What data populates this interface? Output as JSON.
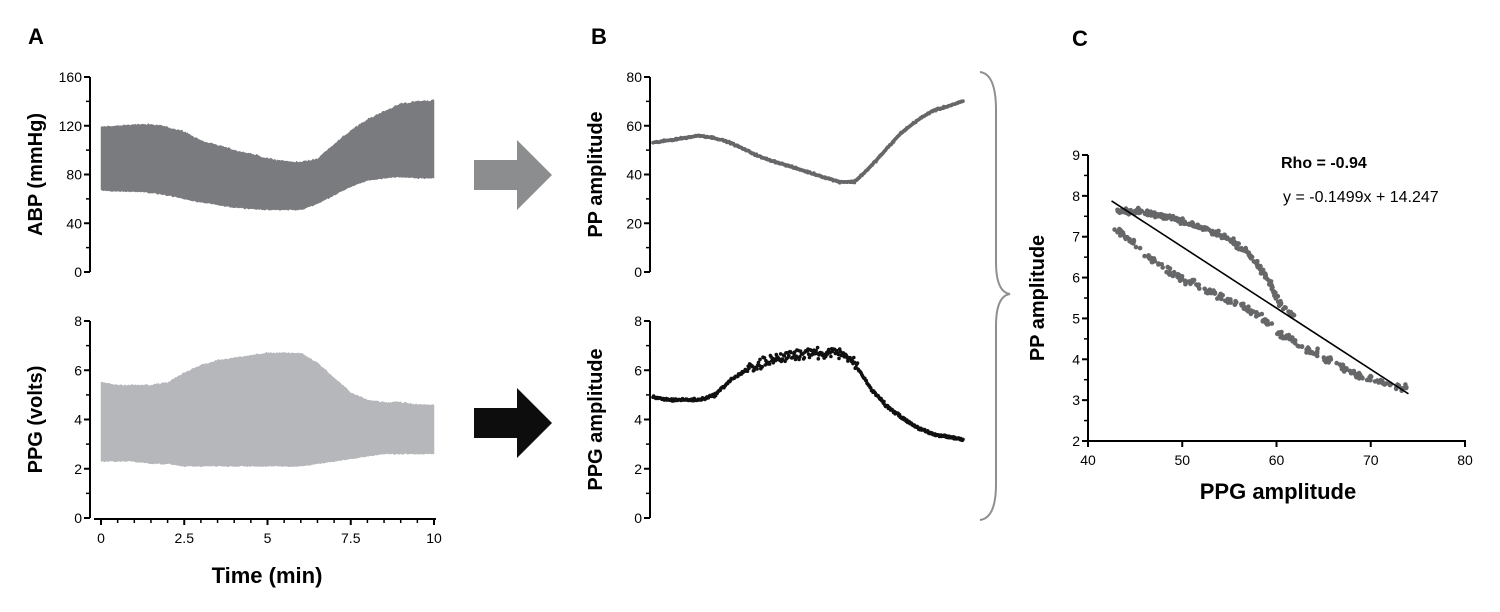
{
  "panels": {
    "a": "A",
    "b": "B",
    "c": "C"
  },
  "colors": {
    "abp": "#7a7b7e",
    "ppg": "#b6b7ba",
    "pp_points": "#666769",
    "ppg_points": "#111111",
    "arrow_top": "#8c8d8f",
    "arrow_bottom": "#0d0d0d",
    "brace": "#8f8f8f",
    "axis": "#000000"
  },
  "chart_data": [
    {
      "id": "a-abp",
      "type": "area",
      "ylabel": "ABP (mmHg)",
      "ylim": [
        0,
        160
      ],
      "yticks": [
        0,
        40,
        80,
        120,
        160
      ],
      "xlim": [
        0,
        10
      ],
      "x": [
        0,
        0.5,
        1,
        1.5,
        2,
        2.5,
        3,
        3.5,
        4,
        4.5,
        5,
        5.5,
        6,
        6.5,
        7,
        7.5,
        8,
        8.5,
        9,
        9.5,
        10
      ],
      "upper": [
        119,
        120,
        121,
        121,
        119,
        115,
        108,
        104,
        100,
        97,
        93,
        91,
        90,
        93,
        105,
        116,
        125,
        132,
        138,
        140,
        141
      ],
      "lower": [
        67,
        66,
        66,
        65,
        63,
        60,
        57,
        55,
        53,
        52,
        51,
        51,
        51,
        56,
        63,
        70,
        75,
        77,
        78,
        77,
        77
      ]
    },
    {
      "id": "a-ppg",
      "type": "area",
      "ylabel": "PPG (volts)",
      "ylim": [
        0,
        8
      ],
      "yticks": [
        0,
        2,
        4,
        6,
        8
      ],
      "xlim": [
        0,
        10
      ],
      "xticks": [
        0,
        2.5,
        5,
        7.5,
        10
      ],
      "xticklabels": [
        "0",
        "2.5",
        "5",
        "7.5",
        "10"
      ],
      "xlabel": "Time (min)",
      "x": [
        0,
        0.5,
        1,
        1.5,
        2,
        2.5,
        3,
        3.5,
        4,
        4.5,
        5,
        5.5,
        6,
        6.5,
        7,
        7.5,
        8,
        8.5,
        9,
        9.5,
        10
      ],
      "upper": [
        5.5,
        5.4,
        5.4,
        5.4,
        5.5,
        5.9,
        6.2,
        6.4,
        6.5,
        6.6,
        6.7,
        6.7,
        6.7,
        6.3,
        5.7,
        5.1,
        4.8,
        4.7,
        4.7,
        4.6,
        4.6
      ],
      "lower": [
        2.3,
        2.3,
        2.3,
        2.2,
        2.2,
        2.1,
        2.1,
        2.1,
        2.1,
        2.1,
        2.1,
        2.1,
        2.1,
        2.2,
        2.3,
        2.4,
        2.5,
        2.6,
        2.6,
        2.6,
        2.6
      ]
    },
    {
      "id": "b-pp",
      "type": "scatter",
      "ylabel": "PP amplitude",
      "ylim": [
        0,
        80
      ],
      "yticks": [
        0,
        20,
        40,
        60,
        80
      ],
      "xlim": [
        0,
        10
      ],
      "x": [
        0,
        0.5,
        1,
        1.5,
        2,
        2.5,
        3,
        3.5,
        4,
        4.5,
        5,
        5.5,
        6,
        6.5,
        7,
        7.5,
        8,
        8.5,
        9,
        9.5,
        10
      ],
      "y": [
        53,
        54,
        55,
        56,
        55,
        53,
        50,
        47,
        45,
        43,
        41,
        39,
        37,
        37,
        43,
        50,
        57,
        62,
        66,
        68,
        70
      ]
    },
    {
      "id": "b-ppg",
      "type": "scatter",
      "ylabel": "PPG amplitude",
      "ylim": [
        0,
        8
      ],
      "yticks": [
        0,
        2,
        4,
        6,
        8
      ],
      "xlim": [
        0,
        10
      ],
      "x": [
        0,
        0.5,
        1,
        1.5,
        2,
        2.5,
        3,
        3.5,
        4,
        4.5,
        5,
        5.5,
        6,
        6.5,
        7,
        7.5,
        8,
        8.5,
        9,
        9.5,
        10
      ],
      "y": [
        4.9,
        4.8,
        4.8,
        4.8,
        5.0,
        5.6,
        6.0,
        6.3,
        6.5,
        6.6,
        6.7,
        6.7,
        6.7,
        6.3,
        5.3,
        4.6,
        4.1,
        3.7,
        3.4,
        3.3,
        3.2
      ]
    },
    {
      "id": "c-corr",
      "type": "scatter",
      "xlabel": "PPG amplitude",
      "ylabel": "PP amplitude",
      "xlim": [
        40,
        80
      ],
      "ylim": [
        2,
        9
      ],
      "xticks": [
        40,
        50,
        60,
        70,
        80
      ],
      "yticks": [
        2,
        3,
        4,
        5,
        6,
        7,
        8,
        9
      ],
      "rho_text": "Rho = -0.94",
      "equation": "y = -0.1499x + 14.247",
      "fit": {
        "slope": -0.1499,
        "intercept": 14.247,
        "x_range": [
          42.5,
          74
        ]
      },
      "upper_band": {
        "x": [
          43,
          45,
          47,
          49,
          51,
          53,
          55,
          57,
          58,
          59,
          60,
          61,
          62
        ],
        "y": [
          7.6,
          7.65,
          7.55,
          7.45,
          7.3,
          7.15,
          6.95,
          6.6,
          6.3,
          6.0,
          5.5,
          5.2,
          5.0
        ]
      },
      "lower_band": {
        "x": [
          43,
          45,
          47,
          49,
          51,
          53,
          55,
          57,
          59,
          61,
          63,
          65,
          67,
          69,
          71,
          72.5,
          74
        ],
        "y": [
          7.2,
          6.8,
          6.4,
          6.1,
          5.85,
          5.65,
          5.45,
          5.2,
          4.9,
          4.55,
          4.3,
          4.05,
          3.8,
          3.6,
          3.45,
          3.35,
          3.3
        ]
      }
    }
  ]
}
